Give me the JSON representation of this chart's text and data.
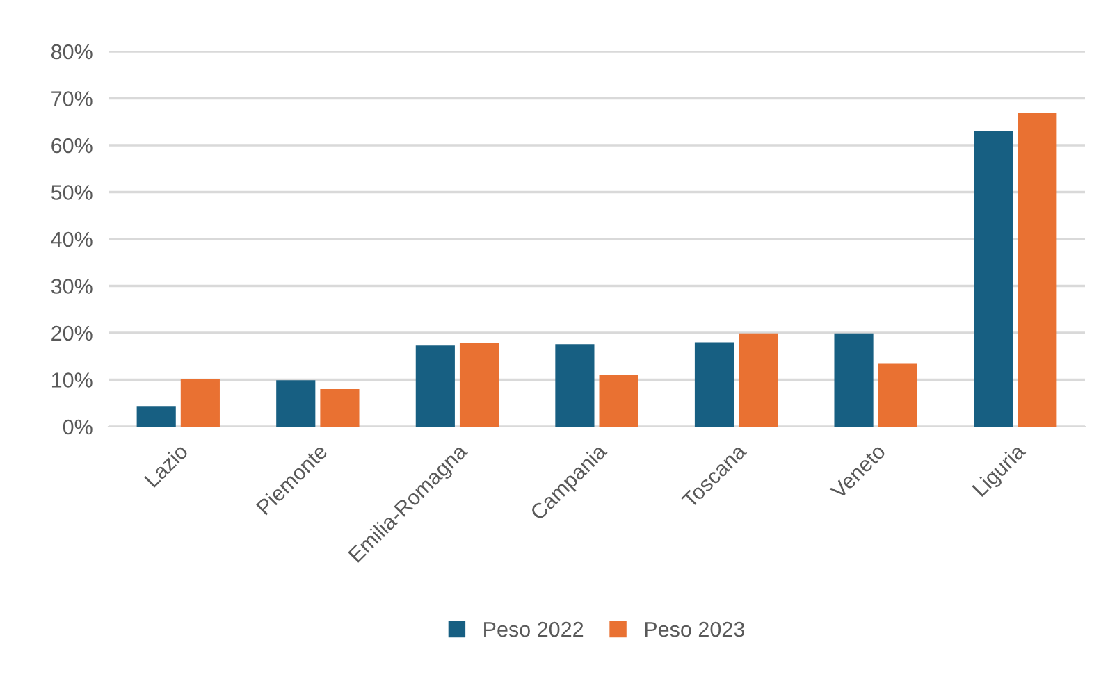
{
  "chart_data": {
    "type": "bar",
    "categories": [
      "Lazio",
      "Piemonte",
      "Emilia-Romagna",
      "Campania",
      "Toscana",
      "Veneto",
      "Liguria"
    ],
    "series": [
      {
        "name": "Peso 2022",
        "color": "#175f82",
        "values": [
          4.4,
          9.9,
          17.3,
          17.6,
          18.0,
          19.9,
          63.0
        ]
      },
      {
        "name": "Peso 2023",
        "color": "#e97132",
        "values": [
          10.2,
          8.0,
          17.9,
          11.0,
          19.9,
          13.4,
          66.8
        ]
      }
    ],
    "ylim": [
      0,
      80
    ],
    "yticks": [
      {
        "value": 0,
        "label": "0%"
      },
      {
        "value": 10,
        "label": "10%"
      },
      {
        "value": 20,
        "label": "20%"
      },
      {
        "value": 30,
        "label": "30%"
      },
      {
        "value": 40,
        "label": "40%"
      },
      {
        "value": 50,
        "label": "50%"
      },
      {
        "value": 60,
        "label": "60%"
      },
      {
        "value": 70,
        "label": "70%"
      },
      {
        "value": 80,
        "label": "80%"
      }
    ],
    "grid": "y",
    "legend": "bottom"
  }
}
